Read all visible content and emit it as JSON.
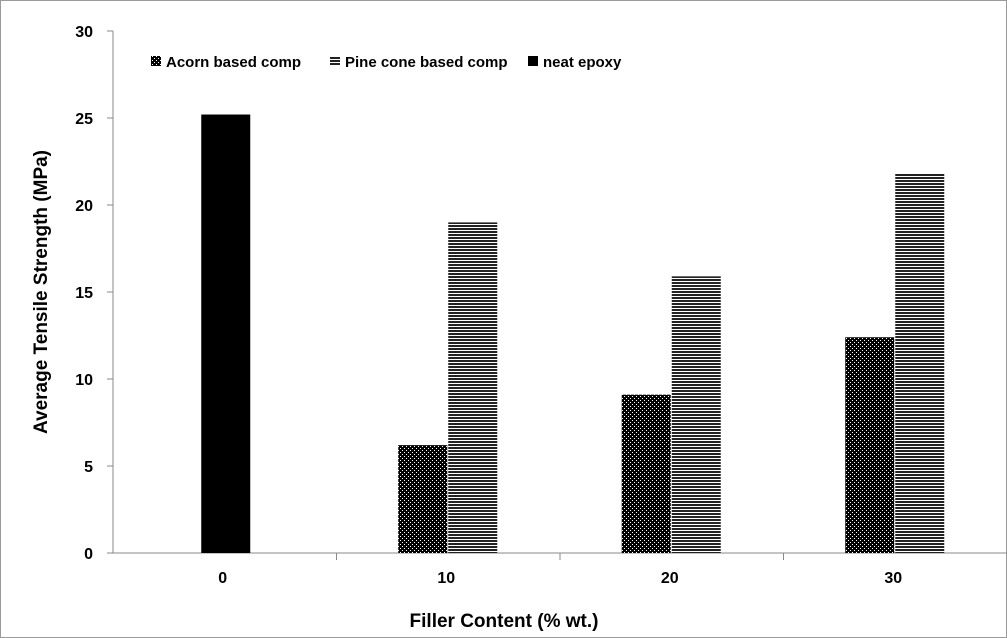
{
  "chart_data": {
    "type": "bar",
    "xlabel": "Filler Content (% wt.)",
    "ylabel": "Average Tensile Strength (MPa)",
    "categories": [
      "0",
      "10",
      "20",
      "30"
    ],
    "ylim": [
      0,
      30
    ],
    "yticks": [
      "0",
      "5",
      "10",
      "15",
      "20",
      "25",
      "30"
    ],
    "grid": false,
    "legend_position": "top-left",
    "series": [
      {
        "name": "Acorn based comp",
        "values": [
          null,
          6.2,
          9.1,
          12.4
        ],
        "pattern": "dots",
        "color": "#000000"
      },
      {
        "name": "Pine cone based comp",
        "values": [
          null,
          19.0,
          15.9,
          21.8
        ],
        "pattern": "horizontal-lines",
        "color": "#000000"
      },
      {
        "name": "neat epoxy",
        "values": [
          25.2,
          null,
          null,
          null
        ],
        "pattern": "solid",
        "color": "#000000"
      }
    ]
  }
}
